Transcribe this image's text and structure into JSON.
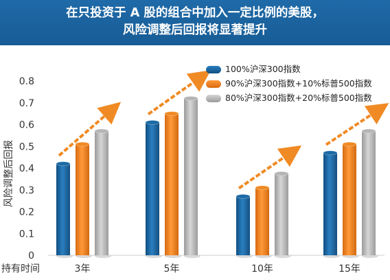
{
  "title": {
    "line1": "在只投资于 A 股的组合中加入一定比例的美股，",
    "line2": "风险调整后回报将显著提升"
  },
  "chart_data": {
    "type": "bar",
    "ylabel": "风险调整后回报",
    "xlabel": "持有时间",
    "ylim": [
      0,
      0.8
    ],
    "yticks": [
      "0",
      "0.1",
      "0.2",
      "0.3",
      "0.4",
      "0.5",
      "0.6",
      "0.7",
      "0.8"
    ],
    "categories": [
      "3年",
      "5年",
      "10年",
      "15年"
    ],
    "series": [
      {
        "name": "100%沪深300指数",
        "color": "#1b6aa5",
        "values": [
          0.42,
          0.61,
          0.27,
          0.47
        ]
      },
      {
        "name": "90%沪深300指数+10%标普500指数",
        "color": "#f08a24",
        "values": [
          0.51,
          0.65,
          0.31,
          0.51
        ]
      },
      {
        "name": "80%沪深300指数+20%标普500指数",
        "color": "#b5b5b5",
        "values": [
          0.57,
          0.72,
          0.375,
          0.57
        ]
      }
    ],
    "legend_position": "top-right",
    "grid": false,
    "arrow_color": "#f08a24"
  }
}
